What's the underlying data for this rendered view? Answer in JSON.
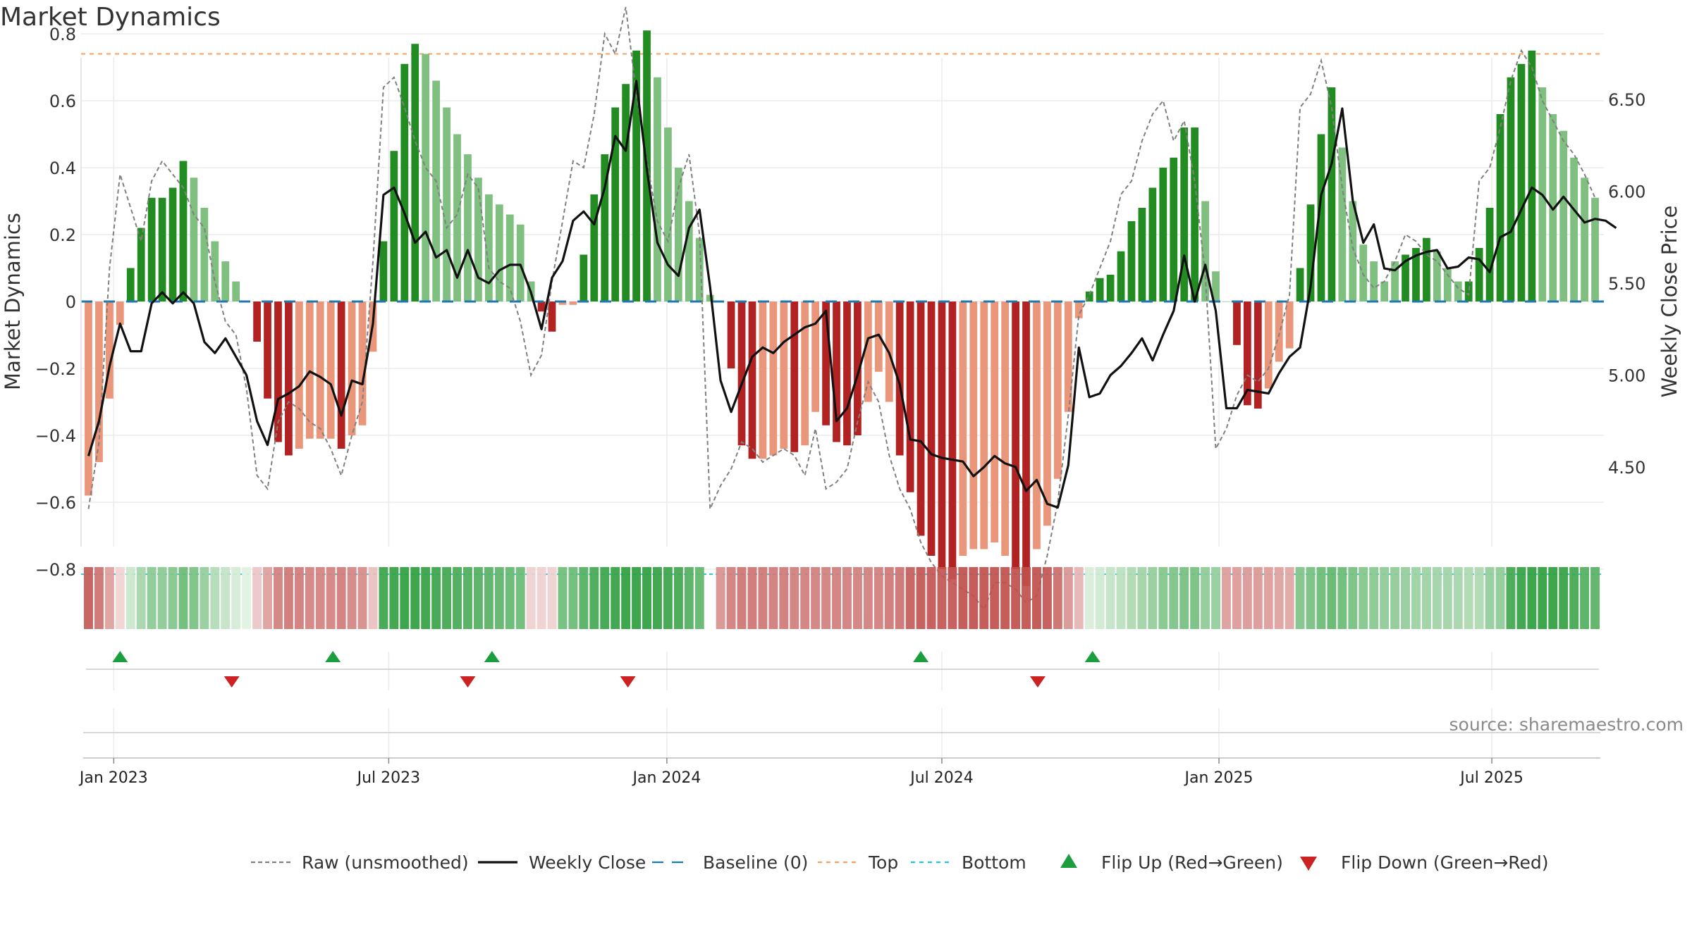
{
  "chart_data": {
    "type": "bar",
    "title": "Market Dynamics",
    "source_note": "source: sharemaestro.com",
    "ylabel": "Market Dynamics",
    "ylabel_right": "Weekly Close Price",
    "ylim": [
      -0.92,
      0.93
    ],
    "ylim_right": [
      4.08,
      6.72
    ],
    "yticks": [
      {
        "value": 0.8,
        "label": "0.8"
      },
      {
        "value": 0.6,
        "label": "0.6"
      },
      {
        "value": 0.4,
        "label": "0.4"
      },
      {
        "value": 0.2,
        "label": "0.2"
      },
      {
        "value": 0.0,
        "label": "0"
      },
      {
        "value": -0.2,
        "label": "−0.2"
      },
      {
        "value": -0.4,
        "label": "−0.4"
      },
      {
        "value": -0.6,
        "label": "−0.6"
      },
      {
        "value": -0.8,
        "label": "−0.8"
      }
    ],
    "yticks_right": [
      {
        "value": 6.5,
        "label": "6.50"
      },
      {
        "value": 6.0,
        "label": "6.00"
      },
      {
        "value": 5.5,
        "label": "5.50"
      },
      {
        "value": 5.0,
        "label": "5.00"
      },
      {
        "value": 4.5,
        "label": "4.50"
      }
    ],
    "xticks": [
      {
        "value": 2.9,
        "label": "Jan 2023"
      },
      {
        "value": 29,
        "label": "Jul 2023"
      },
      {
        "value": 55.4,
        "label": "Jan 2024"
      },
      {
        "value": 81.5,
        "label": "Jul 2024"
      },
      {
        "value": 107.8,
        "label": "Jan 2025"
      },
      {
        "value": 133.7,
        "label": "Jul 2025"
      }
    ],
    "reference_lines": {
      "top": 0.74,
      "bottom": -0.815,
      "baseline": 0
    },
    "colors": {
      "green_dark": "#228b22",
      "green_light": "#7fbf7f",
      "red_dark": "#b22222",
      "red_light": "#e9967a",
      "close": "#111111",
      "raw": "#808080",
      "baseline": "#1f77b4",
      "top": "#f4a261",
      "bottom": "#26c6da",
      "flip_up": "#1a9e3e",
      "flip_down": "#cc2222"
    },
    "bars": [
      -0.58,
      -0.48,
      -0.29,
      -0.07,
      0.1,
      0.22,
      0.31,
      0.31,
      0.34,
      0.42,
      0.37,
      0.28,
      0.18,
      0.12,
      0.06,
      0,
      -0.12,
      -0.29,
      -0.42,
      -0.46,
      -0.44,
      -0.41,
      -0.41,
      -0.41,
      -0.44,
      -0.4,
      -0.37,
      -0.15,
      0.18,
      0.45,
      0.71,
      0.77,
      0.74,
      0.66,
      0.58,
      0.5,
      0.44,
      0.37,
      0.32,
      0.29,
      0.26,
      0.23,
      0.06,
      -0.03,
      -0.09,
      -0.01,
      -0.01,
      0.14,
      0.32,
      0.44,
      0.58,
      0.65,
      0.75,
      0.81,
      0.67,
      0.52,
      0.4,
      0.3,
      0.19,
      0.02,
      0,
      -0.2,
      -0.43,
      -0.47,
      -0.47,
      -0.46,
      -0.44,
      -0.45,
      -0.43,
      -0.33,
      -0.37,
      -0.42,
      -0.43,
      -0.4,
      -0.3,
      -0.21,
      -0.3,
      -0.46,
      -0.57,
      -0.7,
      -0.76,
      -0.8,
      -0.83,
      -0.76,
      -0.74,
      -0.74,
      -0.72,
      -0.76,
      -0.8,
      -0.85,
      -0.74,
      -0.67,
      -0.53,
      -0.33,
      -0.05,
      0.03,
      0.07,
      0.08,
      0.15,
      0.24,
      0.28,
      0.34,
      0.4,
      0.43,
      0.52,
      0.52,
      0.3,
      0.09,
      0,
      -0.13,
      -0.31,
      -0.32,
      -0.26,
      -0.18,
      -0.14,
      0.1,
      0.29,
      0.5,
      0.64,
      0.46,
      0.3,
      0.17,
      0.12,
      0.06,
      0.12,
      0.14,
      0.16,
      0.19,
      0.15,
      0.1,
      0.06,
      0.06,
      0.16,
      0.28,
      0.56,
      0.67,
      0.71,
      0.75,
      0.64,
      0.56,
      0.51,
      0.43,
      0.37,
      0.31
    ],
    "bar_shade": [
      "L",
      "L",
      "L",
      "L",
      "D",
      "D",
      "D",
      "D",
      "D",
      "D",
      "L",
      "L",
      "L",
      "L",
      "L",
      "L",
      "D",
      "D",
      "D",
      "D",
      "L",
      "L",
      "L",
      "L",
      "D",
      "L",
      "L",
      "L",
      "D",
      "D",
      "D",
      "D",
      "L",
      "L",
      "L",
      "L",
      "L",
      "L",
      "L",
      "L",
      "L",
      "L",
      "L",
      "D",
      "D",
      "L",
      "L",
      "D",
      "D",
      "D",
      "D",
      "D",
      "D",
      "D",
      "L",
      "L",
      "L",
      "L",
      "L",
      "L",
      "L",
      "D",
      "D",
      "D",
      "L",
      "L",
      "L",
      "D",
      "L",
      "L",
      "D",
      "D",
      "D",
      "D",
      "L",
      "L",
      "L",
      "D",
      "D",
      "D",
      "D",
      "D",
      "D",
      "L",
      "L",
      "L",
      "L",
      "L",
      "D",
      "D",
      "L",
      "L",
      "L",
      "L",
      "L",
      "D",
      "D",
      "D",
      "D",
      "D",
      "D",
      "D",
      "D",
      "D",
      "D",
      "D",
      "L",
      "L",
      "L",
      "D",
      "D",
      "D",
      "L",
      "L",
      "L",
      "D",
      "D",
      "D",
      "D",
      "L",
      "L",
      "L",
      "L",
      "L",
      "L",
      "D",
      "D",
      "D",
      "L",
      "L",
      "L",
      "D",
      "D",
      "D",
      "D",
      "D",
      "D",
      "D",
      "L",
      "L",
      "L",
      "L",
      "L",
      "L"
    ],
    "weekly_close": [
      4.56,
      4.75,
      5.05,
      5.28,
      5.13,
      5.13,
      5.39,
      5.45,
      5.39,
      5.45,
      5.39,
      5.18,
      5.12,
      5.2,
      5.1,
      5.0,
      4.75,
      4.62,
      4.87,
      4.9,
      4.94,
      5.02,
      4.99,
      4.95,
      4.78,
      4.97,
      4.95,
      5.28,
      5.98,
      6.02,
      5.88,
      5.72,
      5.78,
      5.64,
      5.68,
      5.53,
      5.68,
      5.53,
      5.5,
      5.57,
      5.6,
      5.6,
      5.45,
      5.25,
      5.53,
      5.62,
      5.84,
      5.89,
      5.82,
      6.02,
      6.3,
      6.22,
      6.6,
      6.12,
      5.72,
      5.6,
      5.54,
      5.8,
      5.9,
      5.48,
      4.97,
      4.8,
      4.95,
      5.1,
      5.15,
      5.12,
      5.18,
      5.22,
      5.26,
      5.28,
      5.35,
      4.75,
      4.82,
      5.0,
      5.2,
      5.22,
      5.12,
      4.95,
      4.65,
      4.64,
      4.57,
      4.55,
      4.54,
      4.53,
      4.45,
      4.5,
      4.56,
      4.52,
      4.5,
      4.37,
      4.43,
      4.3,
      4.28,
      4.51,
      5.15,
      4.88,
      4.9,
      5.0,
      5.05,
      5.12,
      5.2,
      5.08,
      5.22,
      5.35,
      5.65,
      5.4,
      5.6,
      5.35,
      4.82,
      4.82,
      4.92,
      4.91,
      4.9,
      5.01,
      5.1,
      5.15,
      5.48,
      5.98,
      6.15,
      6.45,
      5.95,
      5.72,
      5.82,
      5.58,
      5.57,
      5.62,
      5.65,
      5.67,
      5.68,
      5.58,
      5.59,
      5.64,
      5.63,
      5.56,
      5.75,
      5.78,
      5.9,
      6.02,
      5.98,
      5.9,
      5.97,
      5.9,
      5.83,
      5.85,
      5.84,
      5.8
    ],
    "raw": [
      -0.62,
      -0.42,
      0.1,
      0.38,
      0.28,
      0.18,
      0.36,
      0.42,
      0.38,
      0.34,
      0.26,
      0.22,
      0.06,
      -0.06,
      -0.1,
      -0.26,
      -0.52,
      -0.56,
      -0.36,
      -0.3,
      -0.32,
      -0.36,
      -0.38,
      -0.44,
      -0.52,
      -0.4,
      -0.3,
      0.12,
      0.64,
      0.67,
      0.58,
      0.48,
      0.4,
      0.36,
      0.22,
      0.26,
      0.38,
      0.34,
      0.1,
      0.06,
      0.04,
      -0.06,
      -0.22,
      -0.16,
      0.06,
      0.24,
      0.42,
      0.4,
      0.56,
      0.8,
      0.74,
      0.88,
      0.62,
      0.42,
      0.24,
      0.18,
      0.34,
      0.44,
      0.2,
      -0.62,
      -0.55,
      -0.5,
      -0.42,
      -0.44,
      -0.48,
      -0.46,
      -0.44,
      -0.46,
      -0.52,
      -0.38,
      -0.56,
      -0.54,
      -0.5,
      -0.36,
      -0.24,
      -0.3,
      -0.46,
      -0.56,
      -0.62,
      -0.72,
      -0.78,
      -0.82,
      -0.84,
      -0.86,
      -0.88,
      -0.92,
      -0.84,
      -0.84,
      -0.86,
      -0.9,
      -0.88,
      -0.76,
      -0.6,
      -0.34,
      -0.04,
      0.02,
      0.1,
      0.18,
      0.32,
      0.36,
      0.48,
      0.56,
      0.6,
      0.48,
      0.54,
      0.36,
      0.08,
      -0.44,
      -0.38,
      -0.28,
      -0.22,
      -0.24,
      -0.2,
      -0.1,
      0.02,
      0.58,
      0.62,
      0.72,
      0.58,
      0.34,
      0.16,
      0.08,
      0.04,
      0.06,
      0.12,
      0.2,
      0.18,
      0.14,
      0.12,
      0.08,
      0.04,
      0.02,
      0.36,
      0.4,
      0.52,
      0.66,
      0.75,
      0.7,
      0.6,
      0.54,
      0.48,
      0.44,
      0.38,
      0.31
    ],
    "heat_strip": [
      -0.58,
      -0.48,
      -0.29,
      -0.07,
      0.1,
      0.22,
      0.31,
      0.31,
      0.34,
      0.42,
      0.37,
      0.28,
      0.18,
      0.12,
      0.06,
      0.02,
      -0.12,
      -0.29,
      -0.42,
      -0.46,
      -0.44,
      -0.41,
      -0.41,
      -0.41,
      -0.44,
      -0.4,
      -0.37,
      -0.15,
      0.58,
      0.6,
      0.62,
      0.62,
      0.6,
      0.58,
      0.56,
      0.54,
      0.52,
      0.5,
      0.48,
      0.46,
      0.44,
      0.42,
      -0.08,
      -0.08,
      -0.08,
      0.4,
      0.42,
      0.5,
      0.55,
      0.58,
      0.6,
      0.62,
      0.62,
      0.62,
      0.6,
      0.58,
      0.56,
      0.5,
      0.45,
      null,
      -0.35,
      -0.43,
      -0.47,
      -0.47,
      -0.46,
      -0.44,
      -0.45,
      -0.43,
      -0.43,
      -0.42,
      -0.42,
      -0.43,
      -0.43,
      -0.42,
      -0.42,
      -0.43,
      -0.46,
      -0.48,
      -0.57,
      -0.6,
      -0.6,
      -0.6,
      -0.6,
      -0.62,
      -0.62,
      -0.62,
      -0.62,
      -0.62,
      -0.62,
      -0.62,
      -0.62,
      -0.6,
      -0.5,
      -0.33,
      -0.2,
      0.05,
      0.08,
      0.12,
      0.15,
      0.2,
      0.24,
      0.28,
      0.34,
      0.36,
      0.38,
      0.38,
      0.3,
      0.28,
      -0.3,
      -0.31,
      -0.32,
      -0.32,
      -0.3,
      -0.28,
      -0.26,
      0.35,
      0.38,
      0.42,
      0.45,
      0.42,
      0.38,
      0.34,
      0.32,
      0.3,
      0.3,
      0.28,
      0.26,
      0.25,
      0.24,
      0.24,
      0.22,
      0.2,
      0.2,
      0.28,
      0.3,
      0.56,
      0.6,
      0.62,
      0.62,
      0.62,
      0.6,
      0.56,
      0.5,
      0.48
    ],
    "flips_up": [
      3,
      23.2,
      38.3,
      79,
      95.3
    ],
    "flips_down": [
      13.6,
      36,
      51.2,
      90.1
    ],
    "legend": [
      {
        "key": "raw",
        "label": "Raw (unsmoothed)"
      },
      {
        "key": "close",
        "label": "Weekly Close"
      },
      {
        "key": "baseline",
        "label": "Baseline (0)"
      },
      {
        "key": "top",
        "label": "Top"
      },
      {
        "key": "bottom",
        "label": "Bottom"
      },
      {
        "key": "flip_up",
        "label": "Flip Up (Red→Green)"
      },
      {
        "key": "flip_down",
        "label": "Flip Down (Green→Red)"
      }
    ]
  }
}
